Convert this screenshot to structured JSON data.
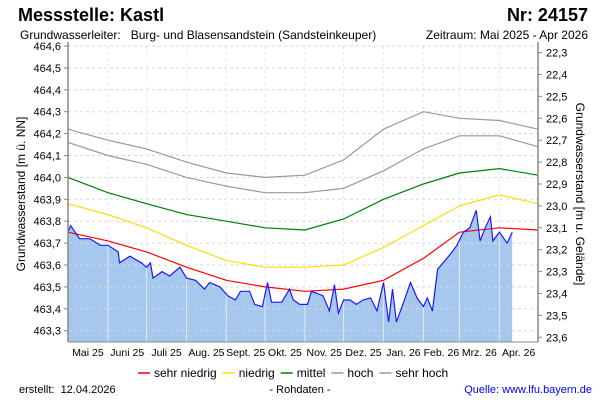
{
  "header": {
    "title": "Messstelle: Kastl",
    "number": "Nr: 24157",
    "aquifer": "Grundwasserleiter:   Burg- und Blasensandstein (Sandsteinkeuper)",
    "period": "Zeitraum: Mai 2025 - Apr 2026"
  },
  "footer": {
    "created": "erstellt:  12.04.2026",
    "data_type": "- Rohdaten -",
    "source": "Quelle: www.lfu.bayern.de"
  },
  "chart_data": {
    "type": "line",
    "title": "",
    "xlabel": "",
    "ylabel": "Grundwasserstand [m ü. NN]",
    "ylim": [
      463.25,
      464.6
    ],
    "yticks": [
      "464,6",
      "464,5",
      "464,4",
      "464,3",
      "464,2",
      "464,1",
      "464,0",
      "463,9",
      "463,8",
      "463,7",
      "463,6",
      "463,5",
      "463,4",
      "463,3"
    ],
    "ytick_values": [
      464.6,
      464.5,
      464.4,
      464.3,
      464.2,
      464.1,
      464.0,
      463.9,
      463.8,
      463.7,
      463.6,
      463.5,
      463.4,
      463.3
    ],
    "right_axis": {
      "label": "Grundwasserstand [m u. Gelände]",
      "reference_level": 486.87,
      "ticks": [
        "22,3",
        "22,4",
        "22,5",
        "22,6",
        "22,7",
        "22,8",
        "22,9",
        "23,0",
        "23,1",
        "23,2",
        "23,3",
        "23,4",
        "23,5",
        "23,6"
      ],
      "tick_values": [
        22.3,
        22.4,
        22.5,
        22.6,
        22.7,
        22.8,
        22.9,
        23.0,
        23.1,
        23.2,
        23.3,
        23.4,
        23.5,
        23.6
      ],
      "inverted": true
    },
    "xlim": [
      "2025-05-01",
      "2026-05-01"
    ],
    "x_tick_labels": [
      "Mai 25",
      "Juni 25",
      "Juli 25",
      "Aug. 25",
      "Sept. 25",
      "Okt. 25",
      "Nov. 25",
      "Dez. 25",
      "Jan. 26",
      "Feb. 26",
      "Mrz. 26",
      "Apr. 26"
    ],
    "grid": true,
    "legend_position": "bottom",
    "threshold_dates": [
      "2025-05-01",
      "2025-06-01",
      "2025-07-01",
      "2025-08-01",
      "2025-09-01",
      "2025-10-01",
      "2025-11-01",
      "2025-12-01",
      "2026-01-01",
      "2026-02-01",
      "2026-03-01",
      "2026-04-01",
      "2026-05-01"
    ],
    "series": [
      {
        "name": "sehr niedrig",
        "color": "#ff0000",
        "values": [
          463.75,
          463.71,
          463.66,
          463.59,
          463.53,
          463.5,
          463.48,
          463.49,
          463.53,
          463.63,
          463.75,
          463.77,
          463.76
        ]
      },
      {
        "name": "niedrig",
        "color": "#ffdd00",
        "values": [
          463.88,
          463.83,
          463.77,
          463.69,
          463.62,
          463.59,
          463.59,
          463.6,
          463.68,
          463.78,
          463.87,
          463.92,
          463.88
        ]
      },
      {
        "name": "mittel",
        "color": "#008000",
        "values": [
          464.0,
          463.93,
          463.88,
          463.83,
          463.8,
          463.77,
          463.76,
          463.81,
          463.9,
          463.97,
          464.02,
          464.04,
          464.01
        ]
      },
      {
        "name": "hoch",
        "color": "#999999",
        "values": [
          464.16,
          464.1,
          464.06,
          464.0,
          463.96,
          463.93,
          463.93,
          463.95,
          464.03,
          464.13,
          464.19,
          464.19,
          464.14
        ]
      },
      {
        "name": "sehr hoch",
        "color": "#999999",
        "values": [
          464.22,
          464.17,
          464.13,
          464.07,
          464.02,
          464.0,
          464.01,
          464.08,
          464.22,
          464.3,
          464.27,
          464.26,
          464.22
        ]
      }
    ],
    "measured": {
      "color": "#1a1aff",
      "fill": "#a6c8ee",
      "points": [
        [
          "2025-05-01",
          463.75
        ],
        [
          "2025-05-03",
          463.78
        ],
        [
          "2025-05-10",
          463.72
        ],
        [
          "2025-05-18",
          463.72
        ],
        [
          "2025-05-26",
          463.69
        ],
        [
          "2025-06-01",
          463.69
        ],
        [
          "2025-06-09",
          463.66
        ],
        [
          "2025-06-10",
          463.61
        ],
        [
          "2025-06-18",
          463.64
        ],
        [
          "2025-06-27",
          463.61
        ],
        [
          "2025-07-01",
          463.59
        ],
        [
          "2025-07-04",
          463.61
        ],
        [
          "2025-07-06",
          463.54
        ],
        [
          "2025-07-13",
          463.57
        ],
        [
          "2025-07-19",
          463.55
        ],
        [
          "2025-07-27",
          463.59
        ],
        [
          "2025-08-01",
          463.54
        ],
        [
          "2025-08-08",
          463.53
        ],
        [
          "2025-08-15",
          463.49
        ],
        [
          "2025-08-19",
          463.52
        ],
        [
          "2025-08-27",
          463.5
        ],
        [
          "2025-09-02",
          463.46
        ],
        [
          "2025-09-08",
          463.44
        ],
        [
          "2025-09-12",
          463.48
        ],
        [
          "2025-09-19",
          463.48
        ],
        [
          "2025-09-23",
          463.42
        ],
        [
          "2025-09-29",
          463.41
        ],
        [
          "2025-10-03",
          463.52
        ],
        [
          "2025-10-06",
          463.43
        ],
        [
          "2025-10-14",
          463.43
        ],
        [
          "2025-10-20",
          463.49
        ],
        [
          "2025-10-23",
          463.44
        ],
        [
          "2025-10-28",
          463.42
        ],
        [
          "2025-11-03",
          463.42
        ],
        [
          "2025-11-06",
          463.48
        ],
        [
          "2025-11-15",
          463.46
        ],
        [
          "2025-11-20",
          463.39
        ],
        [
          "2025-11-24",
          463.51
        ],
        [
          "2025-11-27",
          463.38
        ],
        [
          "2025-12-01",
          463.44
        ],
        [
          "2025-12-06",
          463.44
        ],
        [
          "2025-12-11",
          463.42
        ],
        [
          "2025-12-16",
          463.44
        ],
        [
          "2025-12-22",
          463.45
        ],
        [
          "2025-12-27",
          463.39
        ],
        [
          "2026-01-01",
          463.52
        ],
        [
          "2026-01-05",
          463.34
        ],
        [
          "2026-01-08",
          463.49
        ],
        [
          "2026-01-11",
          463.34
        ],
        [
          "2026-01-16",
          463.42
        ],
        [
          "2026-01-22",
          463.52
        ],
        [
          "2026-01-27",
          463.45
        ],
        [
          "2026-02-01",
          463.41
        ],
        [
          "2026-02-04",
          463.45
        ],
        [
          "2026-02-08",
          463.39
        ],
        [
          "2026-02-12",
          463.58
        ],
        [
          "2026-02-22",
          463.65
        ],
        [
          "2026-02-27",
          463.69
        ],
        [
          "2026-03-04",
          463.75
        ],
        [
          "2026-03-09",
          463.77
        ],
        [
          "2026-03-14",
          463.85
        ],
        [
          "2026-03-17",
          463.71
        ],
        [
          "2026-03-21",
          463.77
        ],
        [
          "2026-03-25",
          463.82
        ],
        [
          "2026-03-27",
          463.71
        ],
        [
          "2026-04-01",
          463.75
        ],
        [
          "2026-04-07",
          463.7
        ],
        [
          "2026-04-11",
          463.75
        ]
      ]
    }
  }
}
